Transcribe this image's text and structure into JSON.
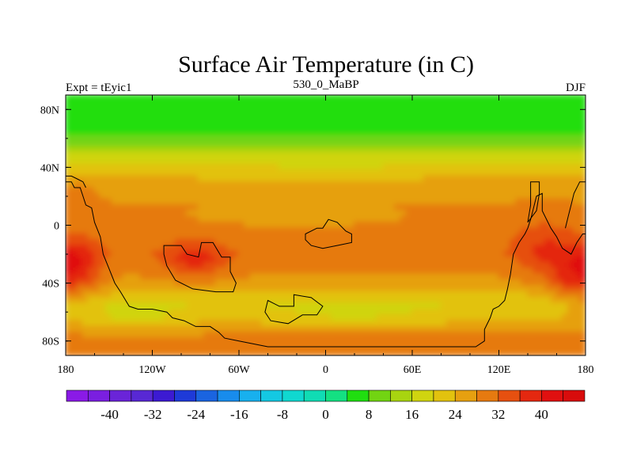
{
  "chart_data": {
    "type": "heatmap",
    "title": "Surface Air Temperature (in C)",
    "subtitle_left": "Expt = tEyic1",
    "subtitle_center": "530_0_MaBP",
    "subtitle_right": "DJF",
    "x_ticks": [
      "180",
      "120W",
      "60W",
      "0",
      "60E",
      "120E",
      "180"
    ],
    "x_tick_values": [
      -180,
      -120,
      -60,
      0,
      60,
      120,
      180
    ],
    "y_ticks": [
      "80N",
      "40N",
      "0",
      "40S",
      "80S"
    ],
    "y_tick_values": [
      80,
      40,
      0,
      -40,
      -80
    ],
    "xlim": [
      -180,
      180
    ],
    "ylim": [
      -90,
      90
    ],
    "colorbar": {
      "levels": [
        -44,
        -40,
        -36,
        -32,
        -28,
        -24,
        -20,
        -16,
        -12,
        -8,
        -4,
        0,
        4,
        8,
        12,
        16,
        20,
        24,
        28,
        32,
        36,
        40,
        44
      ],
      "labels": [
        "-40",
        "-32",
        "-24",
        "-16",
        "-8",
        "0",
        "8",
        "16",
        "24",
        "32",
        "40"
      ],
      "label_values": [
        -40,
        -32,
        -24,
        -16,
        -8,
        0,
        8,
        16,
        24,
        32,
        40
      ],
      "colors": [
        "#8a1ae6",
        "#7a1fe0",
        "#6a24d8",
        "#5828d4",
        "#3c1ad2",
        "#1e3ad8",
        "#1a64e0",
        "#188cec",
        "#18b0ee",
        "#14c8e2",
        "#10d8d0",
        "#10dcb4",
        "#14e082",
        "#20de10",
        "#72d412",
        "#a8d410",
        "#d0d410",
        "#e2c20e",
        "#e6a010",
        "#e67a10",
        "#e65010",
        "#e42810",
        "#e01010",
        "#d80c0c"
      ]
    },
    "field": {
      "description_levels_by_lat": [
        {
          "lat": 90,
          "value": 4
        },
        {
          "lat": 70,
          "value": 5
        },
        {
          "lat": 60,
          "value": 9
        },
        {
          "lat": 50,
          "value": 15
        },
        {
          "lat": 40,
          "value": 20
        },
        {
          "lat": 30,
          "value": 25
        },
        {
          "lat": 15,
          "value": 28
        },
        {
          "lat": 0,
          "value": 29
        },
        {
          "lat": -20,
          "value": 31
        },
        {
          "lat": -40,
          "value": 27
        },
        {
          "lat": -55,
          "value": 20
        },
        {
          "lat": -65,
          "value": 23
        },
        {
          "lat": -75,
          "value": 28
        },
        {
          "lat": -90,
          "value": 29
        }
      ]
    }
  }
}
